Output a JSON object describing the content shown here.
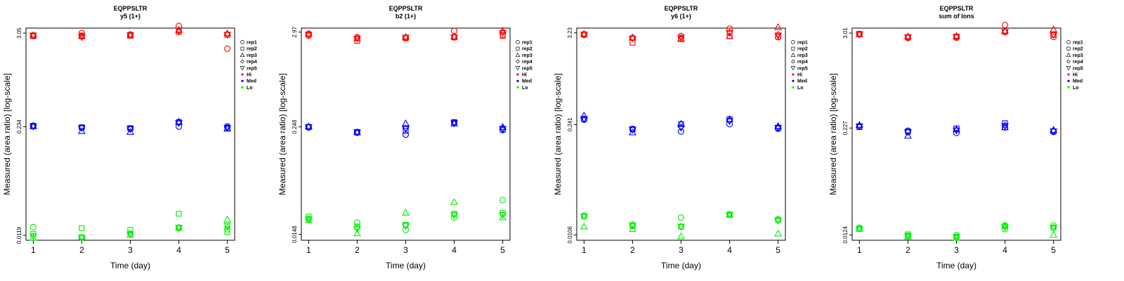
{
  "colors": {
    "Hi": "#ff0000",
    "Med": "#0000ff",
    "Lo": "#00ee00",
    "axis": "#000000"
  },
  "legend": [
    {
      "label": "rep1",
      "marker": "circle"
    },
    {
      "label": "rep2",
      "marker": "square"
    },
    {
      "label": "rep3",
      "marker": "triangle-up"
    },
    {
      "label": "rep4",
      "marker": "diamond"
    },
    {
      "label": "rep5",
      "marker": "triangle-down"
    },
    {
      "label": "Hi",
      "marker": "dot",
      "color": "Hi"
    },
    {
      "label": "Med",
      "marker": "dot",
      "color": "Med"
    },
    {
      "label": "Lo",
      "marker": "dot",
      "color": "Lo"
    }
  ],
  "chart_data": [
    {
      "type": "scatter",
      "title": "EQPPSLTR",
      "subtitle": "y5 (1+)",
      "xlabel": "Time (day)",
      "ylabel": "Measured (area ratio) [log-scale]",
      "y_scale": "log",
      "x_ticks": [
        1,
        2,
        3,
        4,
        5
      ],
      "y_ticks": [
        0.0119,
        0.234,
        3.05
      ],
      "y_tick_labels": [
        "0.0119",
        "0.234",
        "3.05"
      ],
      "ylim": [
        0.0104,
        3.5
      ],
      "legend_position": "right",
      "series": [
        {
          "name": "Hi",
          "points": {
            "rep1": [
              2.83,
              3.05,
              2.94,
              3.71,
              1.99
            ],
            "rep2": [
              2.81,
              2.85,
              2.84,
              3.15,
              2.91
            ],
            "rep3": [
              2.89,
              2.8,
              2.9,
              3.32,
              3.03
            ],
            "rep4": [
              2.85,
              2.86,
              2.87,
              3.2,
              2.96
            ],
            "rep5": [
              2.86,
              2.71,
              2.88,
              3.29,
              2.92
            ]
          }
        },
        {
          "name": "Med",
          "points": {
            "rep1": [
              0.241,
              0.229,
              0.221,
              0.235,
              0.236
            ],
            "rep2": [
              0.239,
              0.23,
              0.225,
              0.266,
              0.225
            ],
            "rep3": [
              0.237,
              0.208,
              0.203,
              0.269,
              0.222
            ],
            "rep4": [
              0.24,
              0.228,
              0.222,
              0.26,
              0.23
            ],
            "rep5": [
              0.236,
              0.226,
              0.22,
              0.258,
              0.228
            ]
          }
        },
        {
          "name": "Lo",
          "points": {
            "rep1": [
              0.0149,
              0.0112,
              0.0125,
              0.0145,
              0.014
            ],
            "rep2": [
              0.0124,
              0.0145,
              0.0138,
              0.0215,
              0.013
            ],
            "rep3": [
              0.0111,
              0.0114,
              0.0121,
              0.0148,
              0.0184
            ],
            "rep4": [
              0.0118,
              0.0113,
              0.0123,
              0.0146,
              0.015
            ],
            "rep5": [
              0.0116,
              0.0112,
              0.0122,
              0.0147,
              0.0155
            ]
          }
        }
      ]
    },
    {
      "type": "scatter",
      "title": "EQPPSLTR",
      "subtitle": "b2 (1+)",
      "xlabel": "Time (day)",
      "ylabel": "Measured (area ratio) [log-scale]",
      "y_scale": "log",
      "x_ticks": [
        1,
        2,
        3,
        4,
        5
      ],
      "y_ticks": [
        0.0148,
        0.248,
        2.97
      ],
      "y_tick_labels": [
        "0.0148",
        "0.248",
        "2.97"
      ],
      "ylim": [
        0.0127,
        3.3
      ],
      "legend_position": "right",
      "series": [
        {
          "name": "Hi",
          "points": {
            "rep1": [
              2.7,
              2.6,
              2.56,
              3.06,
              2.77
            ],
            "rep2": [
              2.82,
              2.36,
              2.53,
              2.59,
              2.69
            ],
            "rep3": [
              2.86,
              2.53,
              2.62,
              2.65,
              3.09
            ],
            "rep4": [
              2.8,
              2.55,
              2.58,
              2.62,
              2.95
            ],
            "rep5": [
              2.75,
              2.5,
              2.57,
              2.6,
              2.9
            ]
          }
        },
        {
          "name": "Med",
          "points": {
            "rep1": [
              0.244,
              0.213,
              0.202,
              0.278,
              0.228
            ],
            "rep2": [
              0.247,
              0.217,
              0.223,
              0.281,
              0.231
            ],
            "rep3": [
              0.251,
              0.215,
              0.272,
              0.271,
              0.248
            ],
            "rep4": [
              0.248,
              0.216,
              0.24,
              0.275,
              0.238
            ],
            "rep5": [
              0.246,
              0.214,
              0.235,
              0.273,
              0.235
            ]
          }
        },
        {
          "name": "Lo",
          "points": {
            "rep1": [
              0.0222,
              0.0202,
              0.0167,
              0.023,
              0.0364
            ],
            "rep2": [
              0.0236,
              0.0182,
              0.0191,
              0.0254,
              0.026
            ],
            "rep3": [
              0.0215,
              0.0152,
              0.0262,
              0.0346,
              0.0232
            ],
            "rep4": [
              0.0225,
              0.0175,
              0.019,
              0.025,
              0.025
            ],
            "rep5": [
              0.022,
              0.017,
              0.0185,
              0.0245,
              0.0245
            ]
          }
        }
      ]
    },
    {
      "type": "scatter",
      "title": "EQPPSLTR",
      "subtitle": "y6 (1+)",
      "xlabel": "Time (day)",
      "ylabel": "Measured (area ratio) [log-scale]",
      "y_scale": "log",
      "x_ticks": [
        1,
        2,
        3,
        4,
        5
      ],
      "y_ticks": [
        0.0106,
        0.241,
        3.23
      ],
      "y_tick_labels": [
        "0.0106",
        "0.241",
        "3.23"
      ],
      "ylim": [
        0.0091,
        3.7
      ],
      "legend_position": "right",
      "series": [
        {
          "name": "Hi",
          "points": {
            "rep1": [
              3.05,
              2.81,
              2.96,
              3.64,
              2.86
            ],
            "rep2": [
              3.1,
              2.45,
              2.7,
              2.94,
              2.9
            ],
            "rep3": [
              3.15,
              2.84,
              2.77,
              2.96,
              3.8
            ],
            "rep4": [
              3.08,
              2.78,
              2.85,
              3.3,
              3.1
            ],
            "rep5": [
              3.06,
              2.75,
              2.82,
              3.2,
              3.0
            ]
          }
        },
        {
          "name": "Med",
          "points": {
            "rep1": [
              0.277,
              0.213,
              0.198,
              0.244,
              0.214
            ],
            "rep2": [
              0.281,
              0.212,
              0.244,
              0.281,
              0.219
            ],
            "rep3": [
              0.311,
              0.193,
              0.246,
              0.28,
              0.231
            ],
            "rep4": [
              0.285,
              0.21,
              0.225,
              0.27,
              0.222
            ],
            "rep5": [
              0.282,
              0.208,
              0.22,
              0.265,
              0.22
            ]
          }
        },
        {
          "name": "Lo",
          "points": {
            "rep1": [
              0.0183,
              0.0142,
              0.0173,
              0.019,
              0.0165
            ],
            "rep2": [
              0.018,
              0.0136,
              0.0133,
              0.0187,
              0.0162
            ],
            "rep3": [
              0.0134,
              0.0125,
              0.0102,
              0.0187,
              0.011
            ],
            "rep4": [
              0.018,
              0.0138,
              0.0135,
              0.0189,
              0.016
            ],
            "rep5": [
              0.0178,
              0.0137,
              0.0134,
              0.0188,
              0.0158
            ]
          }
        }
      ]
    },
    {
      "type": "scatter",
      "title": "EQPPSLTR",
      "subtitle": "sum of Ions",
      "xlabel": "Time (day)",
      "ylabel": "Measured (area ratio) [log-scale]",
      "y_scale": "log",
      "x_ticks": [
        1,
        2,
        3,
        4,
        5
      ],
      "y_ticks": [
        0.0124,
        0.227,
        3.01
      ],
      "y_tick_labels": [
        "0.0124",
        "0.227",
        "3.01"
      ],
      "ylim": [
        0.0107,
        3.45
      ],
      "legend_position": "right",
      "series": [
        {
          "name": "Hi",
          "points": {
            "rep1": [
              2.9,
              2.64,
              2.66,
              3.74,
              2.71
            ],
            "rep2": [
              2.95,
              2.7,
              2.73,
              3.11,
              2.87
            ],
            "rep3": [
              2.93,
              2.75,
              2.79,
              3.2,
              3.34
            ],
            "rep4": [
              2.92,
              2.7,
              2.72,
              3.15,
              2.9
            ],
            "rep5": [
              2.91,
              2.68,
              2.7,
              3.1,
              2.85
            ]
          }
        },
        {
          "name": "Med",
          "points": {
            "rep1": [
              0.235,
              0.211,
              0.199,
              0.231,
              0.205
            ],
            "rep2": [
              0.233,
              0.206,
              0.225,
              0.259,
              0.208
            ],
            "rep3": [
              0.247,
              0.184,
              0.219,
              0.232,
              0.216
            ],
            "rep4": [
              0.24,
              0.205,
              0.215,
              0.245,
              0.21
            ],
            "rep5": [
              0.238,
              0.203,
              0.212,
              0.24,
              0.207
            ]
          }
        },
        {
          "name": "Lo",
          "points": {
            "rep1": [
              0.015,
              0.0121,
              0.0123,
              0.0145,
              0.016
            ],
            "rep2": [
              0.0146,
              0.0126,
              0.0118,
              0.0158,
              0.0152
            ],
            "rep3": [
              0.0146,
              0.0118,
              0.0114,
              0.0162,
              0.0124
            ],
            "rep4": [
              0.0147,
              0.0121,
              0.0118,
              0.0155,
              0.015
            ],
            "rep5": [
              0.0146,
              0.012,
              0.0117,
              0.0152,
              0.0148
            ]
          }
        }
      ]
    }
  ]
}
